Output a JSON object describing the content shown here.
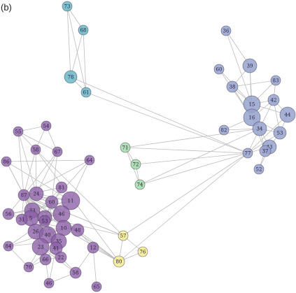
{
  "figure": {
    "panel_label": "(b)",
    "groups": {
      "purple": "#8c5fa6",
      "blue": "#96a3cf",
      "teal": "#6ab9c7",
      "green": "#a3dca7",
      "yellow": "#f3eb94"
    },
    "nodes": [
      {
        "id": "73",
        "group": "teal",
        "r": 7
      },
      {
        "id": "68",
        "group": "teal",
        "r": 7
      },
      {
        "id": "78",
        "group": "teal",
        "r": 9
      },
      {
        "id": "61",
        "group": "teal",
        "r": 7
      },
      {
        "id": "71",
        "group": "green",
        "r": 7
      },
      {
        "id": "72",
        "group": "green",
        "r": 7
      },
      {
        "id": "74",
        "group": "green",
        "r": 7
      },
      {
        "id": "57",
        "group": "yellow",
        "r": 7
      },
      {
        "id": "76",
        "group": "yellow",
        "r": 7
      },
      {
        "id": "80",
        "group": "yellow",
        "r": 8
      },
      {
        "id": "36",
        "group": "blue",
        "r": 7
      },
      {
        "id": "39",
        "group": "blue",
        "r": 10
      },
      {
        "id": "60",
        "group": "blue",
        "r": 7
      },
      {
        "id": "38",
        "group": "blue",
        "r": 8
      },
      {
        "id": "83",
        "group": "blue",
        "r": 7
      },
      {
        "id": "15",
        "group": "blue",
        "r": 12
      },
      {
        "id": "42",
        "group": "blue",
        "r": 8
      },
      {
        "id": "16",
        "group": "blue",
        "r": 12
      },
      {
        "id": "44",
        "group": "blue",
        "r": 11
      },
      {
        "id": "34",
        "group": "blue",
        "r": 10
      },
      {
        "id": "82",
        "group": "blue",
        "r": 7
      },
      {
        "id": "53",
        "group": "blue",
        "r": 9
      },
      {
        "id": "43",
        "group": "blue",
        "r": 10
      },
      {
        "id": "77",
        "group": "blue",
        "r": 7
      },
      {
        "id": "37",
        "group": "blue",
        "r": 8
      },
      {
        "id": "52",
        "group": "blue",
        "r": 7
      },
      {
        "id": "54",
        "group": "purple",
        "r": 7
      },
      {
        "id": "55",
        "group": "purple",
        "r": 7
      },
      {
        "id": "58",
        "group": "purple",
        "r": 7
      },
      {
        "id": "67",
        "group": "purple",
        "r": 7
      },
      {
        "id": "86",
        "group": "purple",
        "r": 7
      },
      {
        "id": "64",
        "group": "purple",
        "r": 7
      },
      {
        "id": "81",
        "group": "purple",
        "r": 8
      },
      {
        "id": "87",
        "group": "purple",
        "r": 8
      },
      {
        "id": "24",
        "group": "purple",
        "r": 10
      },
      {
        "id": "11",
        "group": "purple",
        "r": 13
      },
      {
        "id": "60",
        "group": "purple",
        "r": 9
      },
      {
        "id": "56",
        "group": "purple",
        "r": 8
      },
      {
        "id": "33",
        "group": "purple",
        "r": 11
      },
      {
        "id": "5",
        "group": "purple",
        "r": 11
      },
      {
        "id": "46",
        "group": "purple",
        "r": 12
      },
      {
        "id": "29",
        "group": "purple",
        "r": 10
      },
      {
        "id": "31",
        "group": "purple",
        "r": 8
      },
      {
        "id": "53",
        "group": "purple",
        "r": 8
      },
      {
        "id": "26",
        "group": "purple",
        "r": 11
      },
      {
        "id": "40",
        "group": "purple",
        "r": 12
      },
      {
        "id": "10",
        "group": "purple",
        "r": 11
      },
      {
        "id": "48",
        "group": "purple",
        "r": 9
      },
      {
        "id": "84",
        "group": "purple",
        "r": 7
      },
      {
        "id": "35",
        "group": "purple",
        "r": 11
      },
      {
        "id": "23",
        "group": "purple",
        "r": 12
      },
      {
        "id": "41",
        "group": "purple",
        "r": 9
      },
      {
        "id": "12",
        "group": "purple",
        "r": 8
      },
      {
        "id": "70",
        "group": "purple",
        "r": 7
      },
      {
        "id": "66",
        "group": "purple",
        "r": 8
      },
      {
        "id": "22",
        "group": "purple",
        "r": 8
      },
      {
        "id": "58",
        "group": "purple",
        "r": 8
      },
      {
        "id": "46",
        "group": "purple",
        "r": 7
      },
      {
        "id": "65",
        "group": "purple",
        "r": 7
      }
    ],
    "edges": [
      [
        0,
        1
      ],
      [
        0,
        2
      ],
      [
        1,
        2
      ],
      [
        1,
        3
      ],
      [
        2,
        3
      ],
      [
        0,
        3
      ],
      [
        2,
        23
      ],
      [
        3,
        23
      ],
      [
        4,
        5
      ],
      [
        4,
        6
      ],
      [
        5,
        6
      ],
      [
        4,
        23
      ],
      [
        5,
        23
      ],
      [
        6,
        23
      ],
      [
        4,
        19
      ],
      [
        6,
        19
      ],
      [
        7,
        8
      ],
      [
        7,
        9
      ],
      [
        8,
        9
      ],
      [
        7,
        23
      ],
      [
        9,
        23
      ],
      [
        7,
        28
      ],
      [
        9,
        28
      ],
      [
        9,
        33
      ],
      [
        7,
        33
      ],
      [
        10,
        11
      ],
      [
        10,
        15
      ],
      [
        11,
        13
      ],
      [
        11,
        15
      ],
      [
        11,
        17
      ],
      [
        12,
        15
      ],
      [
        13,
        15
      ],
      [
        13,
        17
      ],
      [
        14,
        16
      ],
      [
        14,
        15
      ],
      [
        15,
        16
      ],
      [
        15,
        17
      ],
      [
        15,
        18
      ],
      [
        15,
        19
      ],
      [
        16,
        17
      ],
      [
        16,
        18
      ],
      [
        16,
        19
      ],
      [
        17,
        19
      ],
      [
        17,
        20
      ],
      [
        17,
        21
      ],
      [
        18,
        21
      ],
      [
        19,
        21
      ],
      [
        19,
        22
      ],
      [
        19,
        24
      ],
      [
        21,
        22
      ],
      [
        21,
        23
      ],
      [
        22,
        23
      ],
      [
        22,
        24
      ],
      [
        22,
        25
      ],
      [
        24,
        25
      ],
      [
        19,
        23
      ],
      [
        17,
        24
      ],
      [
        16,
        21
      ],
      [
        18,
        23
      ],
      [
        13,
        14
      ],
      [
        12,
        17
      ],
      [
        20,
        19
      ],
      [
        33,
        27
      ],
      [
        33,
        28
      ],
      [
        33,
        29
      ],
      [
        33,
        30
      ],
      [
        33,
        31
      ],
      [
        33,
        32
      ],
      [
        33,
        34
      ],
      [
        33,
        35
      ],
      [
        33,
        36
      ],
      [
        33,
        37
      ],
      [
        33,
        38
      ],
      [
        33,
        39
      ],
      [
        33,
        40
      ],
      [
        33,
        41
      ],
      [
        33,
        42
      ],
      [
        33,
        44
      ],
      [
        33,
        45
      ],
      [
        33,
        46
      ],
      [
        33,
        47
      ],
      [
        33,
        49
      ],
      [
        33,
        50
      ],
      [
        33,
        51
      ],
      [
        26,
        28
      ],
      [
        26,
        29
      ],
      [
        27,
        28
      ],
      [
        27,
        34
      ],
      [
        29,
        34
      ],
      [
        29,
        36
      ],
      [
        28,
        34
      ],
      [
        30,
        35
      ],
      [
        30,
        38
      ],
      [
        31,
        35
      ],
      [
        32,
        33
      ],
      [
        32,
        39
      ],
      [
        32,
        41
      ],
      [
        34,
        35
      ],
      [
        34,
        36
      ],
      [
        35,
        37
      ],
      [
        35,
        38
      ],
      [
        35,
        39
      ],
      [
        35,
        40
      ],
      [
        36,
        40
      ],
      [
        36,
        41
      ],
      [
        37,
        38
      ],
      [
        37,
        39
      ],
      [
        38,
        39
      ],
      [
        38,
        40
      ],
      [
        39,
        40
      ],
      [
        39,
        42
      ],
      [
        39,
        43
      ],
      [
        39,
        44
      ],
      [
        40,
        41
      ],
      [
        40,
        42
      ],
      [
        40,
        44
      ],
      [
        41,
        44
      ],
      [
        41,
        47
      ],
      [
        42,
        43
      ],
      [
        42,
        44
      ],
      [
        42,
        45
      ],
      [
        43,
        44
      ],
      [
        43,
        48
      ],
      [
        44,
        45
      ],
      [
        44,
        46
      ],
      [
        45,
        46
      ],
      [
        46,
        47
      ],
      [
        46,
        48
      ],
      [
        45,
        49
      ],
      [
        46,
        50
      ],
      [
        46,
        51
      ],
      [
        47,
        52
      ],
      [
        48,
        49
      ],
      [
        49,
        53
      ],
      [
        50,
        54
      ],
      [
        50,
        55
      ],
      [
        51,
        55
      ],
      [
        49,
        54
      ],
      [
        50,
        56
      ],
      [
        51,
        57
      ],
      [
        52,
        58
      ],
      [
        52,
        56
      ],
      [
        53,
        54
      ],
      [
        54,
        55
      ],
      [
        55,
        56
      ],
      [
        56,
        57
      ],
      [
        42,
        47
      ],
      [
        43,
        49
      ],
      [
        44,
        50
      ],
      [
        45,
        51
      ],
      [
        37,
        42
      ],
      [
        38,
        43
      ],
      [
        36,
        45
      ],
      [
        31,
        36
      ],
      [
        30,
        31
      ],
      [
        27,
        29
      ],
      [
        26,
        27
      ],
      [
        34,
        40
      ],
      [
        41,
        51
      ],
      [
        48,
        53
      ],
      [
        54,
        57
      ],
      [
        53,
        50
      ],
      [
        33,
        9
      ],
      [
        33,
        7
      ],
      [
        46,
        9
      ],
      [
        47,
        9
      ],
      [
        52,
        9
      ],
      [
        51,
        33
      ],
      [
        41,
        7
      ]
    ]
  }
}
